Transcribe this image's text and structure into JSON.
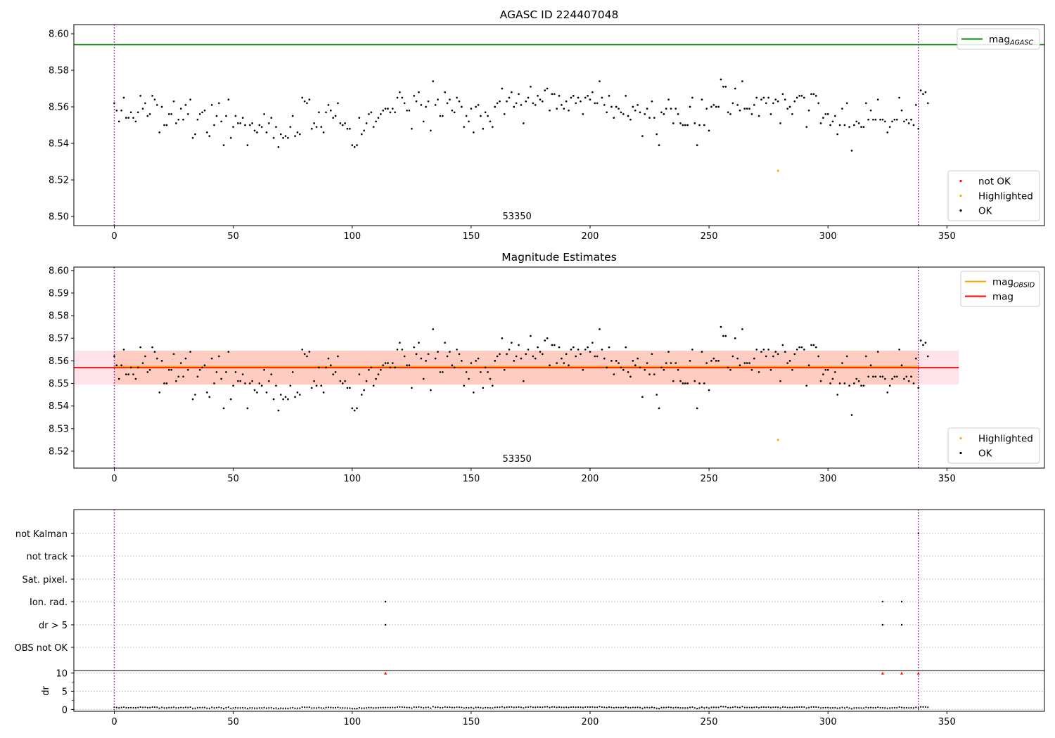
{
  "chart_data": [
    {
      "type": "scatter",
      "title": "AGASC ID 224407048",
      "xlim": [
        -17,
        391
      ],
      "ylim": [
        8.495,
        8.605
      ],
      "x_ticks": [
        0,
        50,
        100,
        150,
        200,
        250,
        300,
        350
      ],
      "y_ticks": [
        8.5,
        8.52,
        8.54,
        8.56,
        8.58,
        8.6
      ],
      "hlines": [
        {
          "name": "mag_AGASC",
          "y": 8.594,
          "color": "#008000"
        }
      ],
      "vlines": [
        0,
        338
      ],
      "annotations": [
        {
          "text": "53350",
          "x": 169
        }
      ],
      "legends": [
        {
          "position": "top-right",
          "entries": [
            {
              "label": "mag",
              "sub": "AGASC",
              "marker": "line",
              "color": "#008000"
            }
          ]
        },
        {
          "position": "bottom-right",
          "entries": [
            {
              "label": "not OK",
              "marker": "dot",
              "color": "#ff0000"
            },
            {
              "label": "Highlighted",
              "marker": "dot",
              "color": "#ffa500"
            },
            {
              "label": "OK",
              "marker": "dot",
              "color": "#000000"
            }
          ]
        }
      ],
      "highlighted": [
        {
          "x": 279,
          "y": 8.525
        }
      ],
      "series": [
        {
          "name": "OK",
          "color": "#000000",
          "x_start": 0,
          "values": [
            8.562,
            8.558,
            8.552,
            8.558,
            8.565,
            8.554,
            8.554,
            8.557,
            8.554,
            8.552,
            8.557,
            8.566,
            8.559,
            8.562,
            8.555,
            8.556,
            8.566,
            8.564,
            8.561,
            8.546,
            8.56,
            8.55,
            8.55,
            8.556,
            8.556,
            8.563,
            8.551,
            8.553,
            8.559,
            8.553,
            8.561,
            8.556,
            8.564,
            8.543,
            8.545,
            8.553,
            8.556,
            8.557,
            8.558,
            8.546,
            8.544,
            8.561,
            8.55,
            8.555,
            8.562,
            8.552,
            8.539,
            8.555,
            8.564,
            8.543,
            8.549,
            8.555,
            8.551,
            8.551,
            8.554,
            8.55,
            8.539,
            8.55,
            8.551,
            8.547,
            8.546,
            8.55,
            8.549,
            8.556,
            8.546,
            8.551,
            8.554,
            8.543,
            8.549,
            8.538,
            8.545,
            8.543,
            8.544,
            8.543,
            8.549,
            8.555,
            8.544,
            8.546,
            8.545,
            8.565,
            8.563,
            8.562,
            8.564,
            8.548,
            8.551,
            8.549,
            8.557,
            8.549,
            8.546,
            8.557,
            8.561,
            8.558,
            8.554,
            8.555,
            8.562,
            8.551,
            8.55,
            8.551,
            8.548,
            8.548,
            8.539,
            8.538,
            8.539,
            8.554,
            8.545,
            8.547,
            8.551,
            8.556,
            8.557,
            8.549,
            8.552,
            8.554,
            8.556,
            8.558,
            8.559,
            8.559,
            8.557,
            8.559,
            8.557,
            8.565,
            8.568,
            8.565,
            8.562,
            8.558,
            8.558,
            8.548,
            8.566,
            8.563,
            8.568,
            8.561,
            8.552,
            8.56,
            8.563,
            8.547,
            8.574,
            8.561,
            8.564,
            8.555,
            8.555,
            8.568,
            8.562,
            8.564,
            8.558,
            8.557,
            8.565,
            8.563,
            8.56,
            8.549,
            8.555,
            8.552,
            8.559,
            8.546,
            8.56,
            8.561,
            8.555,
            8.548,
            8.557,
            8.555,
            8.552,
            8.549,
            8.56,
            8.562,
            8.563,
            8.57,
            8.556,
            8.563,
            8.565,
            8.568,
            8.56,
            8.562,
            8.567,
            8.561,
            8.551,
            8.563,
            8.565,
            8.571,
            8.562,
            8.561,
            8.566,
            8.564,
            8.563,
            8.569,
            8.57,
            8.558,
            8.567,
            8.567,
            8.559,
            8.566,
            8.561,
            8.559,
            8.563,
            8.558,
            8.565,
            8.566,
            8.562,
            8.565,
            8.563,
            8.556,
            8.565,
            8.566,
            8.564,
            8.568,
            8.562,
            8.562,
            8.574,
            8.565,
            8.561,
            8.557,
            8.566,
            8.56,
            8.554,
            8.56,
            8.559,
            8.557,
            8.556,
            8.566,
            8.555,
            8.553,
            8.56,
            8.558,
            8.561,
            8.557,
            8.544,
            8.556,
            8.559,
            8.554,
            8.563,
            8.554,
            8.545,
            8.539,
            8.557,
            8.556,
            8.559,
            8.564,
            8.559,
            8.551,
            8.559,
            8.556,
            8.551,
            8.55,
            8.55,
            8.55,
            8.56,
            8.565,
            8.551,
            8.539,
            8.55,
            8.564,
            8.55,
            8.559,
            8.547,
            8.56,
            8.561,
            8.56,
            8.56,
            8.575,
            8.571,
            8.571,
            8.557,
            8.556,
            8.562,
            8.57,
            8.561,
            8.558,
            8.574,
            8.559,
            8.559,
            8.559,
            8.556,
            8.561,
            8.565,
            8.555,
            8.564,
            8.565,
            8.562,
            8.565,
            8.556,
            8.562,
            8.564,
            8.563,
            8.551,
            8.567,
            8.564,
            8.559,
            8.56,
            8.556,
            8.563,
            8.565,
            8.566,
            8.566,
            8.565,
            8.549,
            8.558,
            8.567,
            8.567,
            8.566,
            8.562,
            8.551,
            8.554,
            8.556,
            8.556,
            8.55,
            8.552,
            8.555,
            8.545,
            8.55,
            8.559,
            8.55,
            8.562,
            8.549,
            8.536,
            8.55,
            8.552,
            8.551,
            8.549,
            8.549,
            8.562,
            8.553,
            8.558,
            8.553,
            8.553,
            8.564,
            8.553,
            8.553,
            8.552,
            8.546,
            8.549,
            8.552,
            8.553,
            8.553,
            8.565,
            8.558,
            8.552,
            8.553,
            8.551,
            8.553,
            8.55,
            8.561,
            8.548,
            8.569,
            8.567,
            8.568,
            8.562
          ]
        }
      ]
    },
    {
      "type": "scatter",
      "title": "Magnitude Estimates",
      "xlim": [
        -17,
        391
      ],
      "ylim": [
        8.5125,
        8.6015
      ],
      "x_ticks": [
        0,
        50,
        100,
        150,
        200,
        250,
        300,
        350
      ],
      "y_ticks": [
        8.52,
        8.53,
        8.54,
        8.55,
        8.56,
        8.57,
        8.58,
        8.59,
        8.6
      ],
      "hlines": [
        {
          "name": "mag_OBSID",
          "y": 8.5575,
          "x_range": [
            0,
            338
          ],
          "color": "#ffa500"
        },
        {
          "name": "mag",
          "y": 8.557,
          "x_range": [
            -17,
            355
          ],
          "color": "#ff0000"
        }
      ],
      "bands": [
        {
          "color": "#ffc0cb",
          "opacity": 0.45,
          "x_range": [
            -17,
            355
          ],
          "y_range": [
            8.5495,
            8.5645
          ]
        },
        {
          "color": "#ffa07a",
          "opacity": 0.35,
          "x_range": [
            0,
            338
          ],
          "y_range": [
            8.5495,
            8.5645
          ]
        }
      ],
      "vlines": [
        0,
        338
      ],
      "annotations": [
        {
          "text": "53350",
          "x": 169
        }
      ],
      "legends": [
        {
          "position": "top-right",
          "entries": [
            {
              "label": "mag",
              "sub": "OBSID",
              "marker": "line",
              "color": "#ffa500"
            },
            {
              "label": "mag",
              "marker": "line",
              "color": "#ff0000"
            }
          ]
        },
        {
          "position": "bottom-right",
          "entries": [
            {
              "label": "Highlighted",
              "marker": "dot",
              "color": "#ffa500"
            },
            {
              "label": "OK",
              "marker": "dot",
              "color": "#000000"
            }
          ]
        }
      ],
      "highlighted": [
        {
          "x": 279,
          "y": 8.525
        }
      ],
      "series_ref": "same OK values as panel 1"
    },
    {
      "type": "scatter",
      "title": "",
      "xlim": [
        -17,
        391
      ],
      "x_ticks": [
        0,
        50,
        100,
        150,
        200,
        250,
        300,
        350
      ],
      "categories": [
        "not Kalman",
        "not track",
        "Sat. pixel.",
        "Ion. rad.",
        "dr > 5",
        "OBS not OK"
      ],
      "flags": [
        {
          "category": "Ion. rad.",
          "x": [
            114,
            323,
            331
          ]
        },
        {
          "category": "dr > 5",
          "x": [
            114,
            323,
            331
          ]
        },
        {
          "category": "not Kalman",
          "x": [
            338
          ]
        }
      ],
      "dr": {
        "ylabel": "dr",
        "ylim": [
          -0.5,
          10.5
        ],
        "y_ticks": [
          0,
          5,
          10
        ],
        "values_range": [
          0.2,
          0.8
        ],
        "red_markers_x": [
          114,
          323,
          331,
          338
        ],
        "red_markers_y": 10
      },
      "vlines": [
        0,
        338
      ]
    }
  ],
  "page": {
    "panel1_title": "AGASC ID 224407048",
    "panel2_title": "Magnitude Estimates",
    "annotation": "53350"
  }
}
